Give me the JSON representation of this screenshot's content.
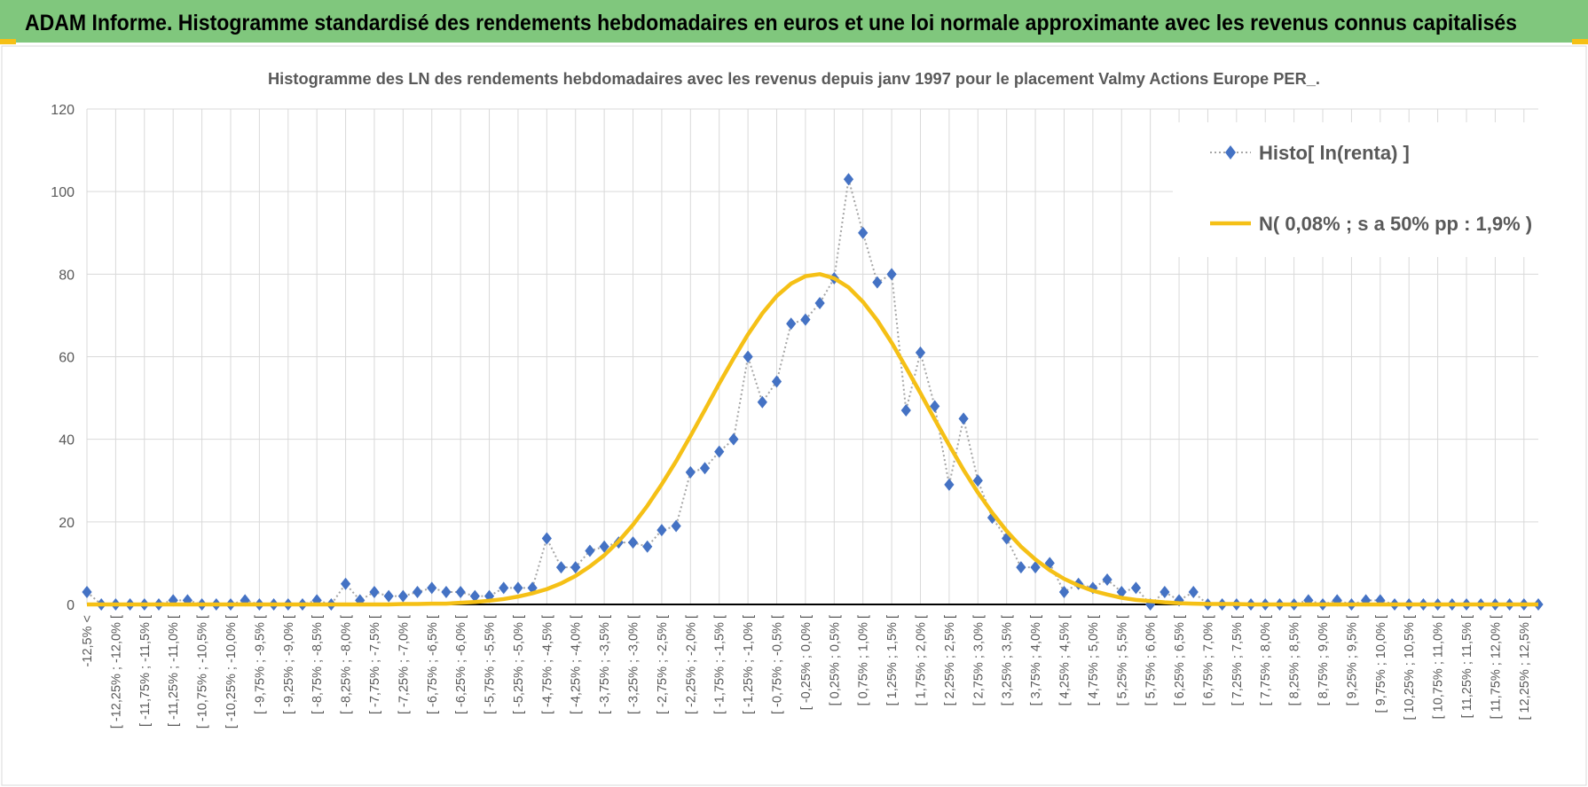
{
  "header": {
    "title": "ADAM Informe. Histogramme standardisé des rendements hebdomadaires en euros et une loi normale approximante avec les revenus connus capitalisés"
  },
  "chart_data": {
    "type": "line",
    "title": "Histogramme des LN des rendements hebdomadaires avec les revenus depuis janv 1997 pour le placement Valmy Actions Europe PER_.",
    "categories": [
      "-12,5% <",
      null,
      "[ -12,25% ; -12,0% [",
      null,
      "[ -11,75% ; -11,5% [",
      null,
      "[ -11,25% ; -11,0% [",
      null,
      "[ -10,75% ; -10,5% [",
      null,
      "[ -10,25% ; -10,0% [",
      null,
      "[ -9,75% ; -9,5% [",
      null,
      "[ -9,25% ; -9,0% [",
      null,
      "[ -8,75% ; -8,5% [",
      null,
      "[ -8,25% ; -8,0% [",
      null,
      "[ -7,75% ; -7,5% [",
      null,
      "[ -7,25% ; -7,0% [",
      null,
      "[ -6,75% ; -6,5% [",
      null,
      "[ -6,25% ; -6,0% [",
      null,
      "[ -5,75% ; -5,5% [",
      null,
      "[ -5,25% ; -5,0% [",
      null,
      "[ -4,75% ; -4,5% [",
      null,
      "[ -4,25% ; -4,0% [",
      null,
      "[ -3,75% ; -3,5% [",
      null,
      "[ -3,25% ; -3,0% [",
      null,
      "[ -2,75% ; -2,5% [",
      null,
      "[ -2,25% ; -2,0% [",
      null,
      "[ -1,75% ; -1,5% [",
      null,
      "[ -1,25% ; -1,0% [",
      null,
      "[ -0,75% ; -0,5% [",
      null,
      "[ -0,25% ; 0,0% [",
      null,
      "[ 0,25% ; 0,5% [",
      null,
      "[ 0,75% ; 1,0% [",
      null,
      "[ 1,25% ; 1,5% [",
      null,
      "[ 1,75% ; 2,0% [",
      null,
      "[ 2,25% ; 2,5% [",
      null,
      "[ 2,75% ; 3,0% [",
      null,
      "[ 3,25% ; 3,5% [",
      null,
      "[ 3,75% ; 4,0% [",
      null,
      "[ 4,25% ; 4,5% [",
      null,
      "[ 4,75% ; 5,0% [",
      null,
      "[ 5,25% ; 5,5% [",
      null,
      "[ 5,75% ; 6,0% [",
      null,
      "[ 6,25% ; 6,5% [",
      null,
      "[ 6,75% ; 7,0% [",
      null,
      "[ 7,25% ; 7,5% [",
      null,
      "[ 7,75% ; 8,0% [",
      null,
      "[ 8,25% ; 8,5% [",
      null,
      "[ 8,75% ; 9,0% [",
      null,
      "[ 9,25% ; 9,5% [",
      null,
      "[ 9,75% ; 10,0% [",
      null,
      "[ 10,25% ; 10,5% [",
      null,
      "[ 10,75% ; 11,0% [",
      null,
      "[ 11,25% ; 11,5% [",
      null,
      "[ 11,75% ; 12,0% [",
      null,
      "[ 12,25% ; 12,5% [",
      null
    ],
    "series": [
      {
        "name": "Histo[ ln(renta) ]",
        "color": "#4472c4",
        "line_color": "#a6a6a6",
        "marker": "diamond",
        "values": [
          3,
          0,
          0,
          0,
          0,
          0,
          1,
          1,
          0,
          0,
          0,
          1,
          0,
          0,
          0,
          0,
          1,
          0,
          5,
          1,
          3,
          2,
          2,
          3,
          4,
          3,
          3,
          2,
          2,
          4,
          4,
          4,
          16,
          9,
          9,
          13,
          14,
          15,
          15,
          14,
          18,
          19,
          32,
          33,
          37,
          40,
          60,
          49,
          54,
          68,
          69,
          73,
          79,
          103,
          90,
          78,
          80,
          47,
          61,
          48,
          29,
          45,
          30,
          21,
          16,
          9,
          9,
          10,
          3,
          5,
          4,
          6,
          3,
          4,
          0,
          3,
          1,
          3,
          0,
          0,
          0,
          0,
          0,
          0,
          0,
          1,
          0,
          1,
          0,
          1,
          1,
          0,
          0,
          0,
          0,
          0,
          0,
          0,
          0,
          0,
          0,
          0
        ]
      },
      {
        "name": "N( 0,08% ; s a 50% pp : 1,9% )",
        "color": "#f5c016",
        "marker": "none",
        "values": [
          0,
          0,
          0,
          0,
          0,
          0,
          0,
          0,
          0,
          0,
          0,
          0,
          0,
          0,
          0,
          0,
          0,
          0,
          0,
          0,
          0,
          0,
          0.1,
          0.1,
          0.2,
          0.2,
          0.4,
          0.6,
          0.9,
          1.3,
          1.9,
          2.7,
          3.7,
          5.1,
          6.9,
          9.2,
          11.9,
          15.3,
          19.3,
          23.9,
          29.1,
          34.7,
          40.8,
          47.1,
          53.5,
          59.6,
          65.4,
          70.5,
          74.7,
          77.7,
          79.5,
          80.0,
          79.0,
          76.8,
          73.3,
          68.8,
          63.4,
          57.4,
          51.2,
          44.8,
          38.6,
          32.6,
          27.1,
          22.2,
          17.8,
          14.0,
          10.9,
          8.3,
          6.2,
          4.6,
          3.3,
          2.4,
          1.6,
          1.1,
          0.8,
          0.5,
          0.3,
          0.2,
          0.1,
          0.1,
          0.1,
          0,
          0,
          0,
          0,
          0,
          0,
          0,
          0,
          0,
          0,
          0,
          0,
          0,
          0,
          0,
          0,
          0,
          0,
          0,
          0,
          0
        ]
      }
    ],
    "ylim": [
      0,
      120
    ],
    "yticks": [
      0,
      20,
      40,
      60,
      80,
      100,
      120
    ],
    "grid": true,
    "legend": "upper right"
  }
}
